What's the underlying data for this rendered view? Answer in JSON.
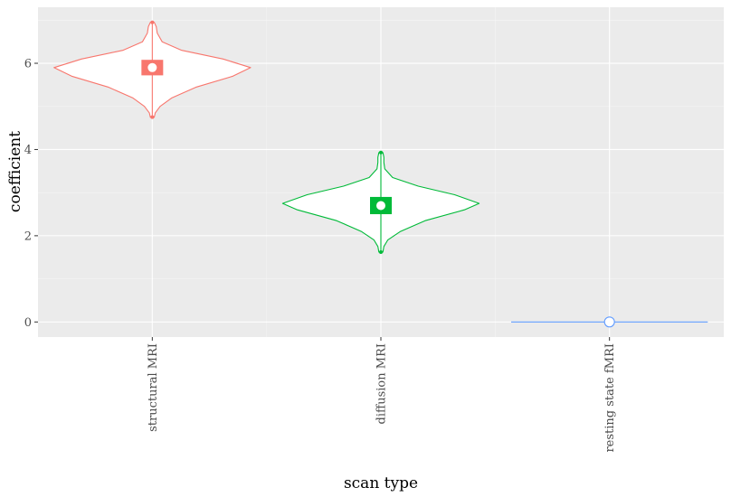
{
  "chart_data": {
    "type": "violin",
    "xlabel": "scan type",
    "ylabel": "coefficient",
    "categories": [
      "structural MRI",
      "diffusion MRI",
      "resting state fMRI"
    ],
    "ylim": [
      -0.35,
      7.3
    ],
    "yticks": [
      0,
      2,
      4,
      6
    ],
    "grid": true,
    "colors": [
      "#f8766d",
      "#00ba38",
      "#619cff"
    ],
    "series": [
      {
        "category": "structural MRI",
        "min": 4.75,
        "max": 6.95,
        "q1": 5.72,
        "median": 5.9,
        "q3": 6.08,
        "density": [
          [
            4.75,
            0.02
          ],
          [
            4.85,
            0.03
          ],
          [
            5.0,
            0.08
          ],
          [
            5.2,
            0.2
          ],
          [
            5.45,
            0.45
          ],
          [
            5.7,
            0.82
          ],
          [
            5.9,
            1.0
          ],
          [
            6.1,
            0.72
          ],
          [
            6.3,
            0.3
          ],
          [
            6.5,
            0.1
          ],
          [
            6.7,
            0.05
          ],
          [
            6.85,
            0.04
          ],
          [
            6.95,
            0.02
          ]
        ]
      },
      {
        "category": "diffusion MRI",
        "min": 1.62,
        "max": 3.93,
        "q1": 2.5,
        "median": 2.7,
        "q3": 2.9,
        "density": [
          [
            1.62,
            0.02
          ],
          [
            1.75,
            0.03
          ],
          [
            1.9,
            0.07
          ],
          [
            2.1,
            0.2
          ],
          [
            2.35,
            0.45
          ],
          [
            2.6,
            0.85
          ],
          [
            2.75,
            1.0
          ],
          [
            2.95,
            0.75
          ],
          [
            3.15,
            0.38
          ],
          [
            3.35,
            0.12
          ],
          [
            3.55,
            0.04
          ],
          [
            3.7,
            0.03
          ],
          [
            3.82,
            0.03
          ],
          [
            3.93,
            0.02
          ]
        ]
      },
      {
        "category": "resting state fMRI",
        "min": 0,
        "max": 0,
        "q1": 0,
        "median": 0,
        "q3": 0,
        "density": []
      }
    ]
  }
}
